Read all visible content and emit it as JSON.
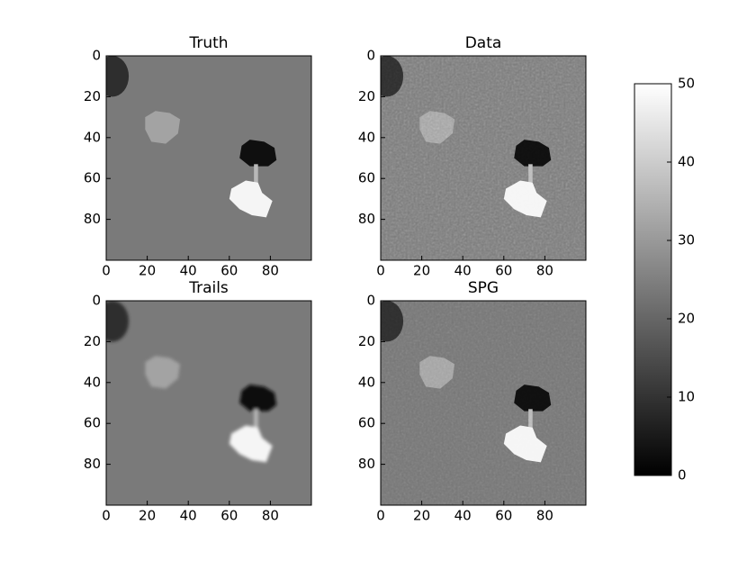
{
  "chart_data": [
    {
      "type": "image",
      "title": "Truth",
      "xlim": [
        0,
        100
      ],
      "ylim": [
        100,
        0
      ],
      "xticks": [
        0,
        20,
        40,
        60,
        80
      ],
      "yticks": [
        0,
        20,
        40,
        60,
        80
      ]
    },
    {
      "type": "image",
      "title": "Data",
      "xlim": [
        0,
        100
      ],
      "ylim": [
        100,
        0
      ],
      "xticks": [
        0,
        20,
        40,
        60,
        80
      ],
      "yticks": [
        0,
        20,
        40,
        60,
        80
      ]
    },
    {
      "type": "image",
      "title": "Trails",
      "xlim": [
        0,
        100
      ],
      "ylim": [
        100,
        0
      ],
      "xticks": [
        0,
        20,
        40,
        60,
        80
      ],
      "yticks": [
        0,
        20,
        40,
        60,
        80
      ]
    },
    {
      "type": "image",
      "title": "SPG",
      "xlim": [
        0,
        100
      ],
      "ylim": [
        100,
        0
      ],
      "xticks": [
        0,
        20,
        40,
        60,
        80
      ],
      "yticks": [
        0,
        20,
        40,
        60,
        80
      ]
    },
    {
      "type": "colorbar",
      "colormap": "gray",
      "ylim": [
        0,
        50
      ],
      "yticks": [
        0,
        10,
        20,
        30,
        40,
        50
      ]
    }
  ]
}
